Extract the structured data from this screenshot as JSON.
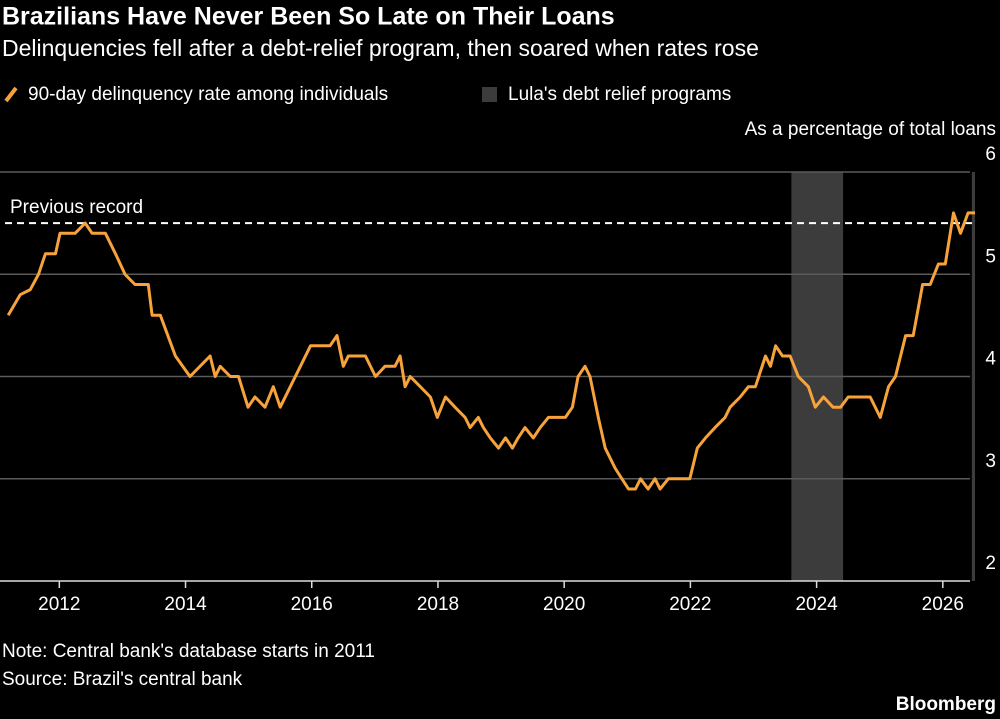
{
  "chart_data": {
    "type": "line",
    "title": "Brazilians Have Never Been So Late on Their Loans",
    "subtitle": "Delinquencies fell after a debt-relief program, then soared when rates rose",
    "y_axis_label": "As a percentage of total loans",
    "x": [
      2011.19,
      2011.38,
      2011.54,
      2011.67,
      2011.78,
      2011.94,
      2012.01,
      2012.25,
      2012.41,
      2012.52,
      2012.73,
      2012.89,
      2013.04,
      2013.2,
      2013.41,
      2013.47,
      2013.6,
      2013.84,
      2014.07,
      2014.23,
      2014.39,
      2014.47,
      2014.55,
      2014.71,
      2014.84,
      2014.99,
      2015.1,
      2015.26,
      2015.39,
      2015.5,
      2015.66,
      2015.82,
      2015.98,
      2016.29,
      2016.4,
      2016.5,
      2016.58,
      2016.85,
      2017.01,
      2017.16,
      2017.32,
      2017.4,
      2017.48,
      2017.56,
      2017.72,
      2017.88,
      2017.99,
      2018.12,
      2018.27,
      2018.43,
      2018.51,
      2018.64,
      2018.72,
      2018.83,
      2018.96,
      2019.07,
      2019.18,
      2019.27,
      2019.38,
      2019.51,
      2019.62,
      2019.75,
      2020.02,
      2020.13,
      2020.22,
      2020.33,
      2020.41,
      2020.54,
      2020.65,
      2020.81,
      2021.02,
      2021.13,
      2021.21,
      2021.33,
      2021.44,
      2021.52,
      2021.65,
      2021.99,
      2022.11,
      2022.24,
      2022.39,
      2022.55,
      2022.63,
      2022.79,
      2022.92,
      2023.03,
      2023.19,
      2023.27,
      2023.35,
      2023.46,
      2023.58,
      2023.71,
      2023.87,
      2023.98,
      2024.11,
      2024.26,
      2024.38,
      2024.5,
      2024.66,
      2024.85,
      2025.01,
      2025.14,
      2025.25,
      2025.41,
      2025.53,
      2025.68,
      2025.8,
      2025.93,
      2026.04,
      2026.17,
      2026.28,
      2026.4,
      2026.51
    ],
    "series": [
      {
        "name": "90-day delinquency rate among individuals",
        "color": "#f7a23b",
        "values": [
          4.6,
          4.8,
          4.85,
          5.0,
          5.2,
          5.2,
          5.4,
          5.4,
          5.5,
          5.4,
          5.4,
          5.2,
          5.0,
          4.9,
          4.9,
          4.6,
          4.6,
          4.2,
          4.0,
          4.1,
          4.2,
          4.0,
          4.1,
          4.0,
          4.0,
          3.7,
          3.8,
          3.7,
          3.9,
          3.7,
          3.9,
          4.1,
          4.3,
          4.3,
          4.4,
          4.1,
          4.2,
          4.2,
          4.0,
          4.1,
          4.1,
          4.2,
          3.9,
          4.0,
          3.9,
          3.8,
          3.6,
          3.8,
          3.7,
          3.6,
          3.5,
          3.6,
          3.5,
          3.4,
          3.3,
          3.4,
          3.3,
          3.4,
          3.5,
          3.4,
          3.5,
          3.6,
          3.6,
          3.7,
          4.0,
          4.1,
          4.0,
          3.6,
          3.3,
          3.1,
          2.9,
          2.9,
          3.0,
          2.9,
          3.0,
          2.9,
          3.0,
          3.0,
          3.3,
          3.4,
          3.5,
          3.6,
          3.7,
          3.8,
          3.9,
          3.9,
          4.2,
          4.1,
          4.3,
          4.2,
          4.2,
          4.0,
          3.9,
          3.7,
          3.8,
          3.7,
          3.7,
          3.8,
          3.8,
          3.8,
          3.6,
          3.9,
          4.0,
          4.4,
          4.4,
          4.9,
          4.9,
          5.1,
          5.1,
          5.6,
          5.4,
          5.6,
          5.6
        ]
      }
    ],
    "shaded_regions": {
      "name": "Lula's debt relief programs",
      "color": "#3c3c3c",
      "ranges": [
        [
          2023.6,
          2024.42
        ],
        [
          2026.46,
          2026.51
        ]
      ]
    },
    "reference_line": {
      "label": "Previous record",
      "value": 5.5
    },
    "xlim": [
      2011.06,
      2026.51
    ],
    "xticks": [
      2012,
      2014,
      2016,
      2018,
      2020,
      2022,
      2024,
      2026
    ],
    "ylim": [
      2,
      6
    ],
    "yticks": [
      2,
      3,
      4,
      5,
      6
    ],
    "grid": true,
    "note": "Note: Central bank's database starts in 2011",
    "source": "Source: Brazil's central bank",
    "branding": "Bloomberg"
  }
}
